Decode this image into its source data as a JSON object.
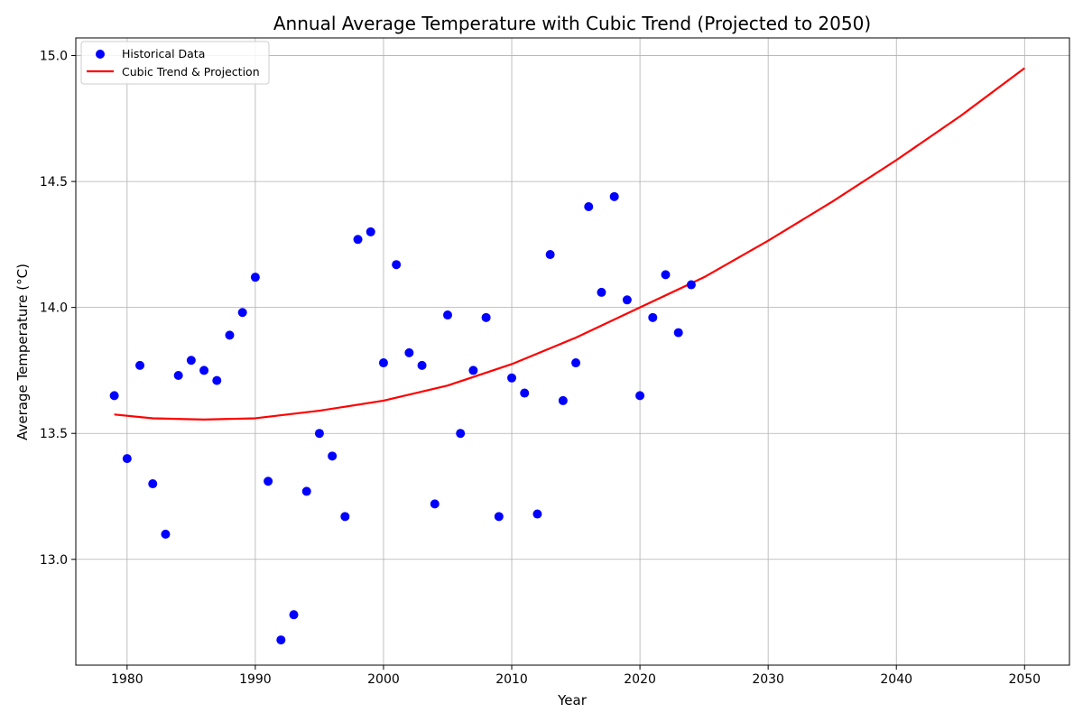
{
  "chart_data": {
    "type": "scatter",
    "title": "Annual Average Temperature with Cubic Trend (Projected to 2050)",
    "xlabel": "Year",
    "ylabel": "Average Temperature (°C)",
    "xlim": [
      1976,
      2053.5
    ],
    "ylim": [
      12.58,
      15.07
    ],
    "xticks": [
      1980,
      1990,
      2000,
      2010,
      2020,
      2030,
      2040,
      2050
    ],
    "yticks": [
      13.0,
      13.5,
      14.0,
      14.5,
      15.0
    ],
    "ytick_labels": [
      "13.0",
      "13.5",
      "14.0",
      "14.5",
      "15.0"
    ],
    "grid": true,
    "legend_position": "top-left",
    "series": [
      {
        "name": "Historical Data",
        "type": "scatter",
        "color": "#0000ff",
        "x": [
          1979,
          1980,
          1981,
          1982,
          1983,
          1984,
          1985,
          1986,
          1987,
          1988,
          1989,
          1990,
          1991,
          1992,
          1993,
          1994,
          1995,
          1996,
          1997,
          1998,
          1999,
          2000,
          2001,
          2002,
          2003,
          2004,
          2005,
          2006,
          2007,
          2008,
          2009,
          2010,
          2011,
          2012,
          2013,
          2014,
          2015,
          2016,
          2017,
          2018,
          2019,
          2020,
          2021,
          2022,
          2023,
          2024
        ],
        "y": [
          13.65,
          13.4,
          13.77,
          13.3,
          13.1,
          13.73,
          13.79,
          13.75,
          13.71,
          13.89,
          13.98,
          14.12,
          13.31,
          12.68,
          12.78,
          13.27,
          13.5,
          13.41,
          13.17,
          14.27,
          14.3,
          13.78,
          14.17,
          13.82,
          13.77,
          13.22,
          13.97,
          13.5,
          13.75,
          13.96,
          13.17,
          13.72,
          13.66,
          13.18,
          14.21,
          13.63,
          13.78,
          14.4,
          14.06,
          14.44,
          14.03,
          13.65,
          13.96,
          14.13,
          13.9,
          14.09
        ]
      },
      {
        "name": "Cubic Trend & Projection",
        "type": "line",
        "color": "#ff0000",
        "x": [
          1979,
          1982,
          1986,
          1990,
          1995,
          2000,
          2005,
          2010,
          2015,
          2020,
          2025,
          2030,
          2035,
          2040,
          2045,
          2050
        ],
        "y": [
          13.575,
          13.56,
          13.555,
          13.56,
          13.59,
          13.63,
          13.69,
          13.775,
          13.88,
          14.0,
          14.12,
          14.265,
          14.42,
          14.585,
          14.76,
          14.95
        ]
      }
    ]
  }
}
